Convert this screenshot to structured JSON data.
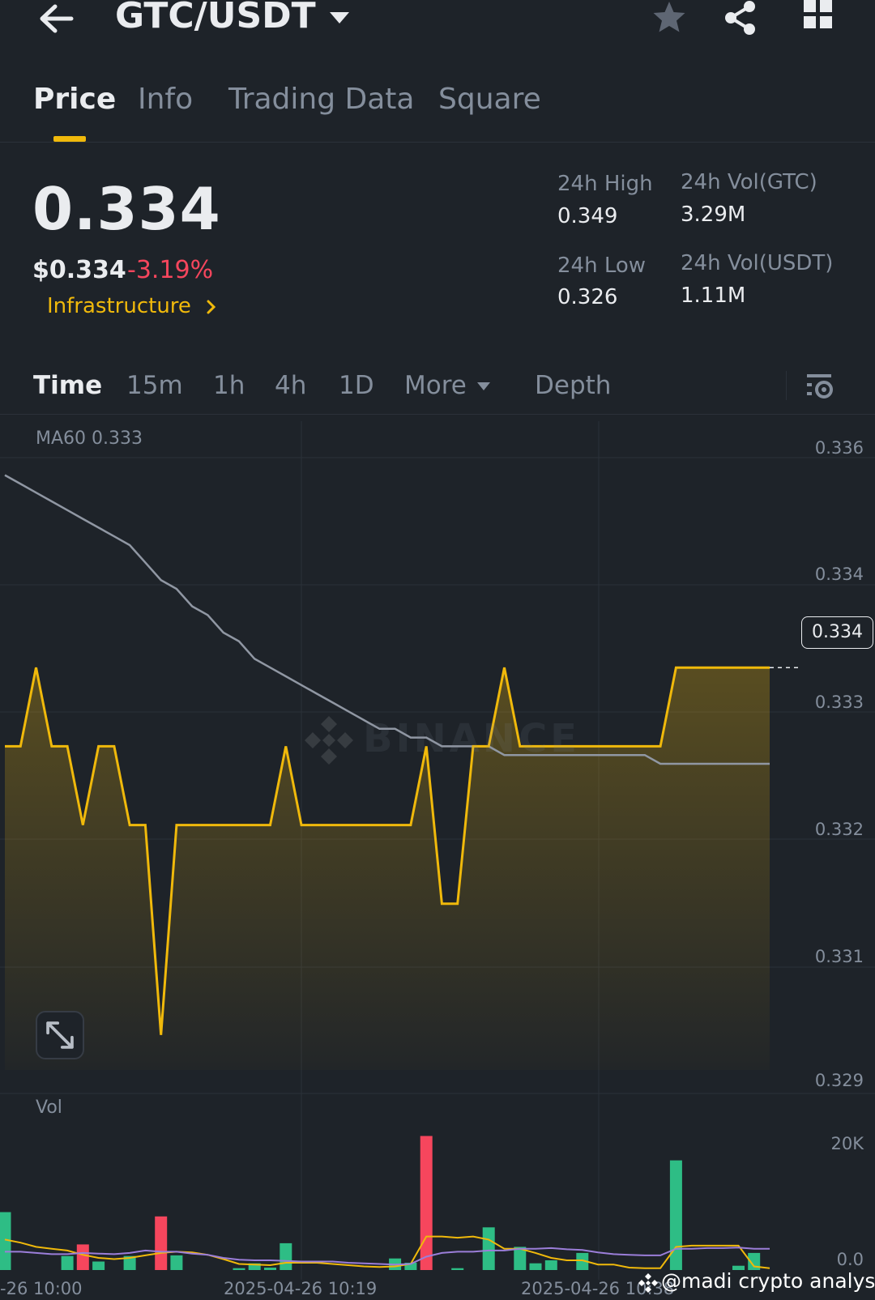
{
  "header": {
    "pair": "GTC/USDT",
    "icons": [
      "back-arrow-icon",
      "chevron-down-icon",
      "star-icon",
      "share-icon",
      "grid-icon"
    ]
  },
  "tabs": [
    {
      "label": "Price",
      "active": true
    },
    {
      "label": "Info",
      "active": false
    },
    {
      "label": "Trading Data",
      "active": false
    },
    {
      "label": "Square",
      "active": false
    }
  ],
  "ticker": {
    "last_price": "0.334",
    "usd_price": "$0.334",
    "change_pct": "-3.19%",
    "category": "Infrastructure",
    "high_label": "24h High",
    "high_value": "0.349",
    "low_label": "24h Low",
    "low_value": "0.326",
    "vol_base_label": "24h Vol(GTC)",
    "vol_base_value": "3.29M",
    "vol_quote_label": "24h Vol(USDT)",
    "vol_quote_value": "1.11M"
  },
  "intervals": [
    {
      "label": "Time",
      "active": true
    },
    {
      "label": "15m",
      "active": false
    },
    {
      "label": "1h",
      "active": false
    },
    {
      "label": "4h",
      "active": false
    },
    {
      "label": "1D",
      "active": false
    },
    {
      "label": "More",
      "active": false
    },
    {
      "label": "Depth",
      "active": false
    }
  ],
  "chart": {
    "ma_label": "MA60 0.333",
    "vol_label": "Vol",
    "current_price_tag": "0.334",
    "watermark": "BINANCE",
    "credit": "@madi crypto analyst"
  },
  "colors": {
    "background": "#1e2329",
    "accent": "#f0b90b",
    "down": "#f6465d",
    "up": "#2ebd85",
    "muted": "#848e9c",
    "ma_line": "#9097a3"
  },
  "chart_data": [
    {
      "type": "area",
      "title": "",
      "y_ticks": [
        "0.336",
        "0.334",
        "0.333",
        "0.332",
        "0.331",
        "0.329"
      ],
      "ylim": [
        0.329,
        0.336
      ],
      "x_ticks": [
        "-26 10:00",
        "2025-04-26 10:19",
        "2025-04-26 10:38"
      ],
      "series": [
        {
          "name": "Price",
          "values": [
            0.3327,
            0.3327,
            0.3336,
            0.3327,
            0.3327,
            0.3318,
            0.3327,
            0.3327,
            0.3318,
            0.3318,
            0.3294,
            0.3318,
            0.3318,
            0.3318,
            0.3318,
            0.3318,
            0.3318,
            0.3318,
            0.3327,
            0.3318,
            0.3318,
            0.3318,
            0.3318,
            0.3318,
            0.3318,
            0.3318,
            0.3318,
            0.3327,
            0.3309,
            0.3309,
            0.3327,
            0.3327,
            0.3336,
            0.3327,
            0.3327,
            0.3327,
            0.3327,
            0.3327,
            0.3327,
            0.3327,
            0.3327,
            0.3327,
            0.3327,
            0.3336,
            0.3336,
            0.3336,
            0.3336,
            0.3336,
            0.3336,
            0.3336
          ]
        },
        {
          "name": "MA60",
          "values": [
            0.3358,
            0.3357,
            0.3356,
            0.3355,
            0.3354,
            0.3353,
            0.3352,
            0.3351,
            0.335,
            0.3348,
            0.3346,
            0.3345,
            0.3343,
            0.3342,
            0.334,
            0.3339,
            0.3337,
            0.3336,
            0.3335,
            0.3334,
            0.3333,
            0.3332,
            0.3331,
            0.333,
            0.3329,
            0.3329,
            0.3328,
            0.3328,
            0.3327,
            0.3327,
            0.3327,
            0.3327,
            0.3326,
            0.3326,
            0.3326,
            0.3326,
            0.3326,
            0.3326,
            0.3326,
            0.3326,
            0.3326,
            0.3326,
            0.3325,
            0.3325,
            0.3325,
            0.3325,
            0.3325,
            0.3325,
            0.3325,
            0.3325
          ]
        }
      ]
    },
    {
      "type": "bar",
      "title": "Vol",
      "y_ticks": [
        "20K",
        "0.0"
      ],
      "ylim": [
        0,
        23000
      ],
      "series": [
        {
          "name": "Vol",
          "values": [
            9500,
            0,
            0,
            0,
            2300,
            4200,
            1400,
            0,
            2300,
            0,
            8800,
            2400,
            0,
            0,
            0,
            300,
            1100,
            400,
            4400,
            0,
            0,
            0,
            0,
            0,
            0,
            1900,
            1200,
            22000,
            0,
            300,
            0,
            7000,
            0,
            3800,
            1100,
            1600,
            0,
            2800,
            0,
            0,
            0,
            0,
            0,
            18000,
            0,
            0,
            0,
            700,
            2800,
            0
          ],
          "colors": [
            "up",
            "up",
            "up",
            "up",
            "up",
            "down",
            "up",
            "up",
            "up",
            "up",
            "down",
            "up",
            "up",
            "up",
            "up",
            "up",
            "up",
            "up",
            "up",
            "up",
            "up",
            "up",
            "up",
            "up",
            "up",
            "up",
            "up",
            "down",
            "up",
            "up",
            "up",
            "up",
            "up",
            "up",
            "up",
            "up",
            "up",
            "up",
            "up",
            "up",
            "up",
            "up",
            "up",
            "up",
            "up",
            "up",
            "up",
            "up",
            "up",
            "up"
          ]
        },
        {
          "name": "Vol MA (yellow)",
          "values": [
            5000,
            4500,
            3800,
            3500,
            3200,
            2500,
            2000,
            1800,
            2000,
            2400,
            2800,
            3000,
            2900,
            2500,
            1800,
            1000,
            900,
            800,
            1200,
            1200,
            1200,
            1000,
            800,
            600,
            500,
            600,
            1000,
            5500,
            5500,
            5300,
            5500,
            5000,
            3500,
            3500,
            2800,
            2000,
            1600,
            1600,
            900,
            900,
            400,
            300,
            300,
            3800,
            4000,
            4000,
            4000,
            4000,
            600,
            300
          ]
        },
        {
          "name": "Vol MA (purple)",
          "values": [
            3000,
            3000,
            2800,
            2600,
            2600,
            2800,
            2700,
            2600,
            2800,
            3200,
            3000,
            3000,
            2700,
            2500,
            2000,
            1700,
            1600,
            1600,
            1500,
            1400,
            1400,
            1400,
            1200,
            1100,
            1000,
            900,
            1000,
            2200,
            2800,
            3000,
            3000,
            3200,
            3200,
            3500,
            3500,
            3600,
            3400,
            3300,
            2900,
            2600,
            2500,
            2400,
            2400,
            3500,
            3500,
            3600,
            3600,
            3700,
            3500,
            3500
          ]
        }
      ]
    }
  ]
}
